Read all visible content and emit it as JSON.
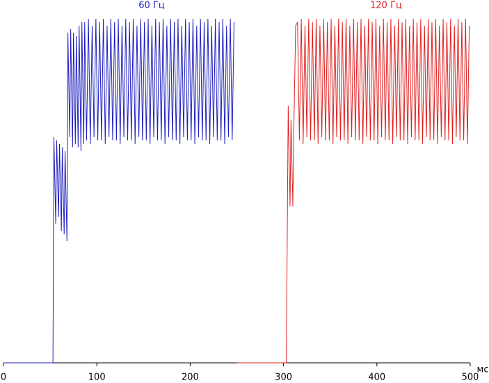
{
  "chart_data": {
    "type": "line",
    "xlabel": "мс",
    "xlim": [
      0,
      500
    ],
    "xticks": [
      0,
      100,
      200,
      300,
      400,
      500
    ],
    "ylim": [
      0,
      100
    ],
    "series": [
      {
        "name": "60 Гц",
        "color": "#1f1fbf",
        "x": [
          0,
          53,
          54,
          56,
          57,
          59,
          60,
          62,
          63,
          65,
          66,
          68,
          69,
          71,
          72,
          74,
          75,
          77,
          78,
          80,
          81,
          83,
          84,
          86,
          87,
          89,
          91,
          93,
          95,
          97,
          99,
          101,
          103,
          105,
          107,
          109,
          111,
          113,
          115,
          117,
          119,
          121,
          123,
          125,
          127,
          129,
          131,
          133,
          135,
          137,
          139,
          141,
          143,
          145,
          147,
          149,
          151,
          153,
          155,
          157,
          159,
          161,
          163,
          165,
          167,
          169,
          171,
          173,
          175,
          177,
          179,
          181,
          183,
          185,
          187,
          189,
          191,
          193,
          195,
          197,
          199,
          201,
          203,
          205,
          207,
          209,
          211,
          213,
          215,
          217,
          219,
          221,
          223,
          225,
          227,
          229,
          231,
          233,
          235,
          237,
          239,
          241,
          243,
          245,
          247
        ],
        "values": [
          0,
          0,
          65,
          40,
          64,
          42,
          63,
          38,
          62,
          37,
          61,
          35,
          95,
          65,
          96,
          62,
          95,
          63,
          94,
          62,
          97,
          61,
          98,
          63,
          98,
          64,
          99,
          63,
          97,
          65,
          99,
          64,
          98,
          64,
          99,
          63,
          97,
          65,
          99,
          64,
          98,
          64,
          99,
          63,
          97,
          65,
          99,
          64,
          98,
          64,
          99,
          63,
          97,
          65,
          99,
          64,
          98,
          64,
          99,
          63,
          97,
          65,
          99,
          64,
          98,
          64,
          99,
          63,
          97,
          65,
          99,
          64,
          98,
          64,
          99,
          63,
          97,
          65,
          99,
          64,
          98,
          64,
          99,
          63,
          97,
          65,
          99,
          64,
          98,
          64,
          99,
          63,
          97,
          65,
          99,
          64,
          98,
          64,
          99,
          63,
          97,
          65,
          99,
          64,
          98
        ]
      },
      {
        "name": "120 Гц",
        "color": "#e02020",
        "x": [
          250,
          303,
          305,
          307,
          308,
          310,
          311,
          313,
          315,
          317,
          319,
          321,
          323,
          325,
          327,
          329,
          331,
          333,
          335,
          337,
          339,
          341,
          343,
          345,
          347,
          349,
          351,
          353,
          355,
          357,
          359,
          361,
          363,
          365,
          367,
          369,
          371,
          373,
          375,
          377,
          379,
          381,
          383,
          385,
          387,
          389,
          391,
          393,
          395,
          397,
          399,
          401,
          403,
          405,
          407,
          409,
          411,
          413,
          415,
          417,
          419,
          421,
          423,
          425,
          427,
          429,
          431,
          433,
          435,
          437,
          439,
          441,
          443,
          445,
          447,
          449,
          451,
          453,
          455,
          457,
          459,
          461,
          463,
          465,
          467,
          469,
          471,
          473,
          475,
          477,
          479,
          481,
          483,
          485,
          487,
          489,
          491,
          493,
          495,
          497,
          499
        ],
        "values": [
          0,
          0,
          74,
          45,
          70,
          45,
          67,
          97,
          98,
          64,
          99,
          63,
          97,
          65,
          99,
          64,
          98,
          64,
          99,
          63,
          97,
          65,
          99,
          64,
          98,
          64,
          99,
          63,
          97,
          65,
          99,
          64,
          98,
          64,
          99,
          63,
          97,
          65,
          99,
          64,
          98,
          64,
          99,
          63,
          97,
          65,
          99,
          64,
          98,
          64,
          99,
          63,
          97,
          65,
          99,
          64,
          98,
          64,
          99,
          63,
          97,
          65,
          99,
          64,
          98,
          64,
          99,
          63,
          97,
          65,
          99,
          64,
          98,
          64,
          99,
          63,
          97,
          65,
          99,
          64,
          98,
          64,
          99,
          63,
          97,
          65,
          99,
          64,
          98,
          64,
          99,
          63,
          97,
          65,
          99,
          64,
          98,
          64,
          99,
          63,
          97
        ]
      }
    ]
  }
}
